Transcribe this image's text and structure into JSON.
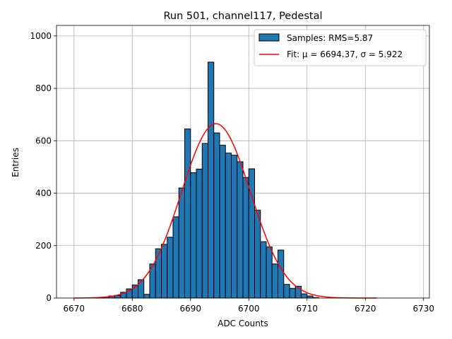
{
  "chart_data": {
    "type": "histogram",
    "title": "Run 501, channel117, Pedestal",
    "xlabel": "ADC Counts",
    "ylabel": "Entries",
    "xlim": [
      6667,
      6731
    ],
    "ylim": [
      0,
      1040
    ],
    "x_ticks": [
      6670,
      6680,
      6690,
      6700,
      6710,
      6720,
      6730
    ],
    "y_ticks": [
      0,
      200,
      400,
      600,
      800,
      1000
    ],
    "grid": true,
    "legend_position": "top-right",
    "bins": {
      "bin_width": 1,
      "left_edges": [
        6674,
        6675,
        6676,
        6677,
        6678,
        6679,
        6680,
        6681,
        6682,
        6683,
        6684,
        6685,
        6686,
        6687,
        6688,
        6689,
        6690,
        6691,
        6692,
        6693,
        6694,
        6695,
        6696,
        6697,
        6698,
        6699,
        6700,
        6701,
        6702,
        6703,
        6704,
        6705,
        6706,
        6707,
        6708,
        6709,
        6710,
        6711
      ],
      "counts": [
        2,
        4,
        8,
        10,
        22,
        35,
        50,
        70,
        14,
        130,
        188,
        205,
        232,
        310,
        420,
        645,
        478,
        492,
        590,
        900,
        630,
        583,
        553,
        545,
        520,
        460,
        493,
        335,
        215,
        195,
        130,
        183,
        52,
        37,
        45,
        16,
        8,
        2
      ]
    },
    "series": [
      {
        "name": "Samples: RMS=5.87",
        "type": "histogram",
        "color": "#1f77b4",
        "edge_color": "#000000"
      },
      {
        "name": "Fit: μ = 6694.37, σ = 5.922",
        "type": "line",
        "color": "#ff0000",
        "mu": 6694.37,
        "sigma": 5.922,
        "amplitude": 665,
        "x_range": [
          6670,
          6722
        ]
      }
    ]
  },
  "colors": {
    "background": "#ffffff",
    "grid": "#b0b0b0",
    "axes": "#000000"
  }
}
